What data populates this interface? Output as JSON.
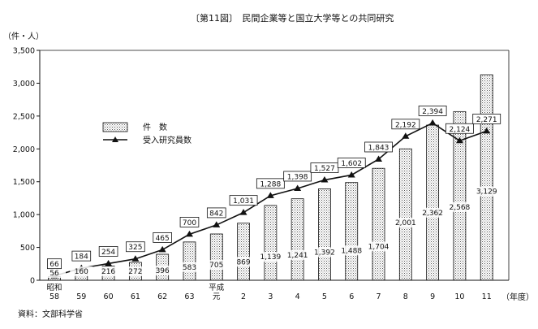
{
  "chart_data": {
    "type": "bar",
    "title": "〔第11図〕　民間企業等と国立大学等との共同研究",
    "ylabel": "（件・人）",
    "xlabel": "（年度）",
    "source": "資料：文部科学省",
    "ylim": [
      0,
      3500
    ],
    "yticks": [
      "0",
      "500",
      "1,000",
      "1,500",
      "2,000",
      "2,500",
      "3,000",
      "3,500"
    ],
    "categories": [
      [
        "昭和",
        "58"
      ],
      [
        "59"
      ],
      [
        "60"
      ],
      [
        "61"
      ],
      [
        "62"
      ],
      [
        "63"
      ],
      [
        "平成",
        "元"
      ],
      [
        "2"
      ],
      [
        "3"
      ],
      [
        "4"
      ],
      [
        "5"
      ],
      [
        "6"
      ],
      [
        "7"
      ],
      [
        "8"
      ],
      [
        "9"
      ],
      [
        "10"
      ],
      [
        "11"
      ]
    ],
    "legend": [
      "件　数",
      "受入研究員数"
    ],
    "legend_position": "upper-left",
    "series": [
      {
        "name": "件　数",
        "kind": "bar",
        "values": [
          56,
          160,
          216,
          272,
          396,
          583,
          705,
          869,
          1139,
          1241,
          1392,
          1488,
          1704,
          2001,
          2362,
          2568,
          3129
        ],
        "labels": [
          "56",
          "160",
          "216",
          "272",
          "396",
          "583",
          "705",
          "869",
          "1,139",
          "1,241",
          "1,392",
          "1,488",
          "1,704",
          "2,001",
          "2,362",
          "2,568",
          "3,129"
        ]
      },
      {
        "name": "受入研究員数",
        "kind": "line",
        "values": [
          66,
          184,
          254,
          325,
          465,
          700,
          842,
          1031,
          1288,
          1398,
          1527,
          1602,
          1843,
          2192,
          2394,
          2124,
          2271
        ],
        "labels": [
          "66",
          "184",
          "254",
          "325",
          "465",
          "700",
          "842",
          "1,031",
          "1,288",
          "1,398",
          "1,527",
          "1,602",
          "1,843",
          "2,192",
          "2,394",
          "2,124",
          "2,271"
        ]
      }
    ]
  }
}
